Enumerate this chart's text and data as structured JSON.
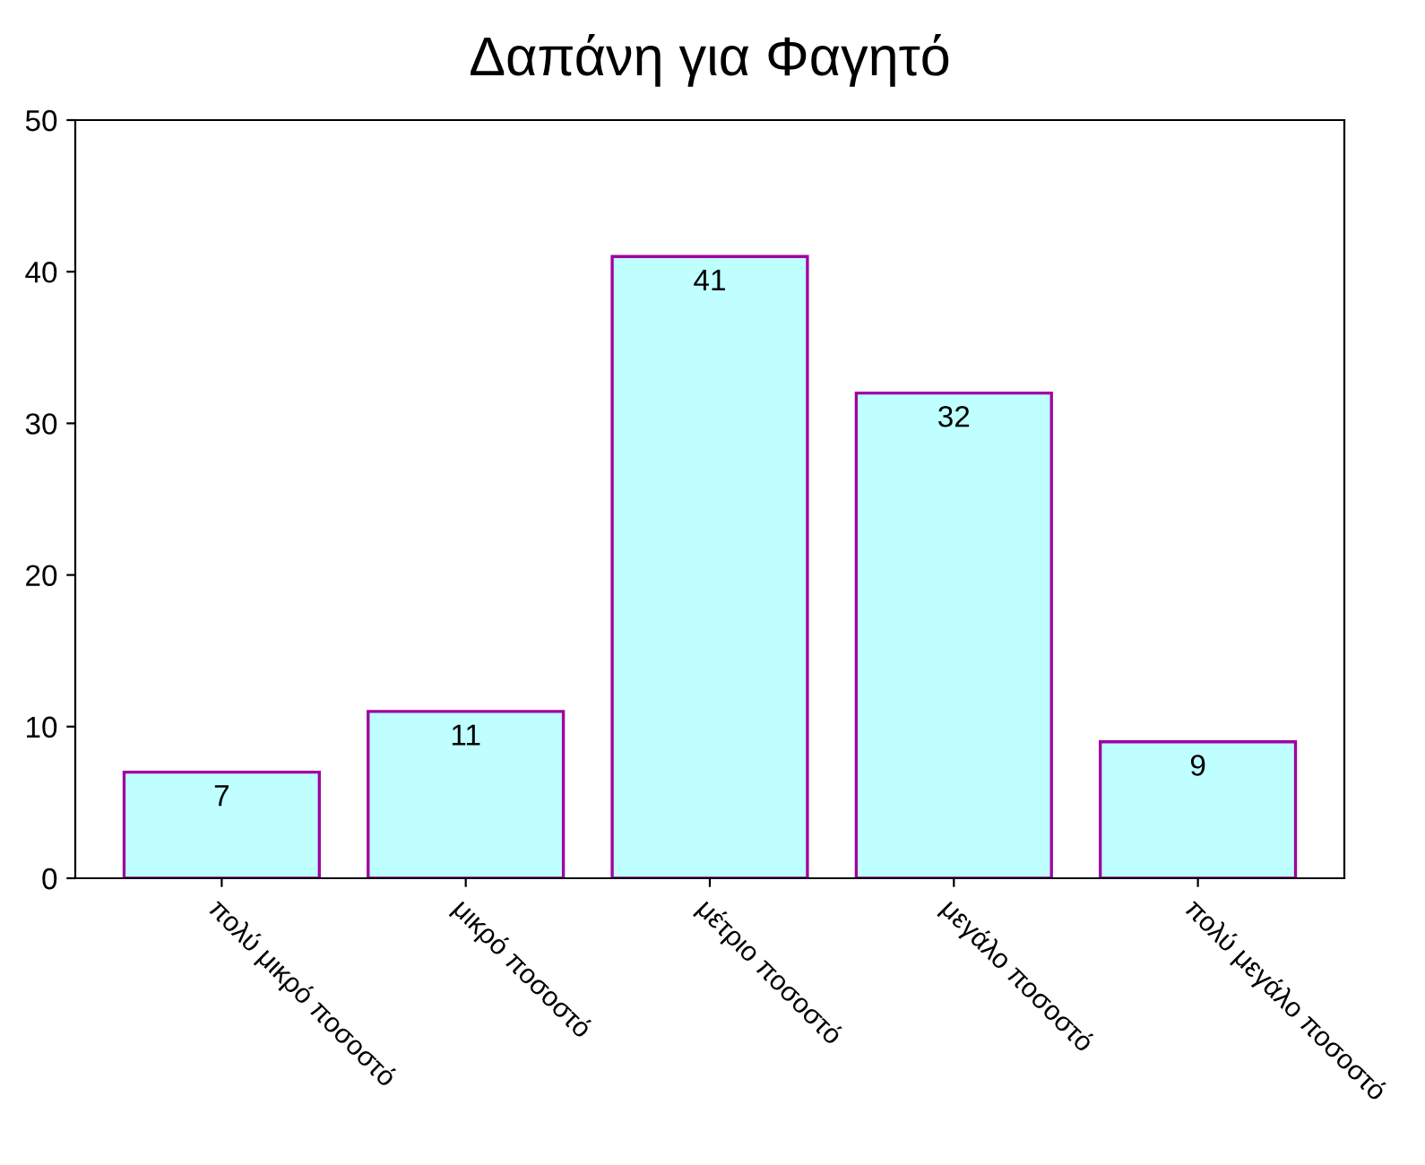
{
  "chart_data": {
    "type": "bar",
    "title": "Δαπάνη για Φαγητό",
    "categories": [
      "πολύ μικρό ποσοστό",
      "μικρό ποσοστό",
      "μέτριο ποσοστό",
      "μεγάλο ποσοστό",
      "πολύ μεγάλο ποσοστό"
    ],
    "values": [
      7,
      11,
      41,
      32,
      9
    ],
    "color": "#bfffff",
    "ylim": [
      0,
      50
    ],
    "yticks": [
      0,
      10,
      20,
      30,
      40,
      50
    ],
    "grid": false,
    "data_labels": true
  }
}
